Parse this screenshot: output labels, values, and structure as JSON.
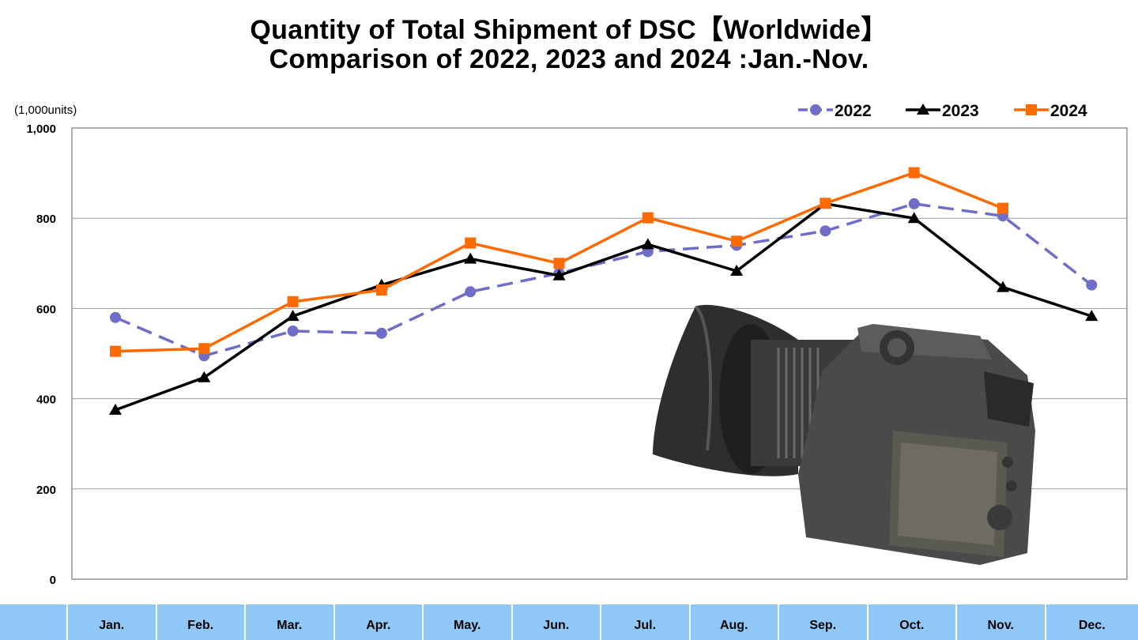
{
  "chart_data": {
    "type": "line",
    "title": "Quantity of Total Shipment of DSC【Worldwide】",
    "subtitle": "Comparison of 2022, 2023 and 2024 :Jan.-Nov.",
    "ylabel": "(1,000units)",
    "xlabel": "",
    "categories": [
      "Jan.",
      "Feb.",
      "Mar.",
      "Apr.",
      "May.",
      "Jun.",
      "Jul.",
      "Aug.",
      "Sep.",
      "Oct.",
      "Nov.",
      "Dec."
    ],
    "ylim": [
      0,
      1000
    ],
    "yticks": [
      "0",
      "200",
      "400",
      "600",
      "800",
      "1,000"
    ],
    "ytick_values": [
      0,
      200,
      400,
      600,
      800,
      1000
    ],
    "grid": true,
    "legend_position": "top-right",
    "series": [
      {
        "name": "2022",
        "color": "#6e6ec8",
        "style": "dashed",
        "marker": "circle",
        "values": [
          580,
          495,
          550,
          545,
          637,
          678,
          726,
          740,
          772,
          832,
          805,
          652
        ]
      },
      {
        "name": "2023",
        "color": "#000000",
        "style": "solid",
        "marker": "triangle",
        "values": [
          375,
          447,
          583,
          652,
          710,
          673,
          742,
          683,
          832,
          800,
          647,
          583
        ]
      },
      {
        "name": "2024",
        "color": "#ff6a00",
        "style": "solid",
        "marker": "square",
        "values": [
          505,
          511,
          615,
          641,
          745,
          700,
          801,
          749,
          833,
          901,
          822,
          null
        ]
      }
    ]
  },
  "decorations": {
    "photo": "digital-camera-photo"
  }
}
